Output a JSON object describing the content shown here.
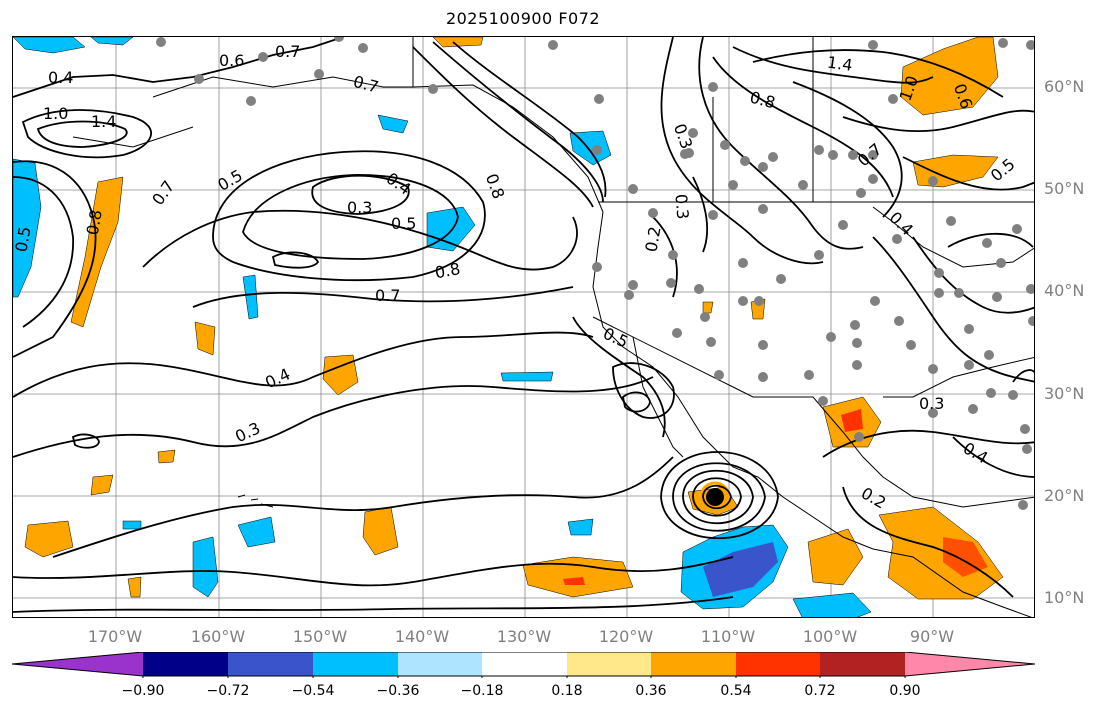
{
  "title": "2025100900 F072",
  "lat_labels": [
    "60°N",
    "50°N",
    "40°N",
    "30°N",
    "20°N",
    "10°N"
  ],
  "lon_labels": [
    "170°W",
    "160°W",
    "150°W",
    "140°W",
    "130°W",
    "120°W",
    "110°W",
    "100°W",
    "90°W"
  ],
  "contour_labels": [
    "0.7",
    "0.6",
    "0.4",
    "1.0",
    "1.4",
    "0.7",
    "0.5",
    "0.4",
    "0.3",
    "0.5",
    "0.8",
    "0.7",
    "0.4",
    "0.3",
    "0.5",
    "1.4",
    "0.8",
    "1.0",
    "0.7",
    "0.5",
    "0.4",
    "0.3",
    "0.2",
    "0.6",
    "0.8",
    "0.5",
    "0.4",
    "0.2",
    "0.3",
    "0.8",
    "0.7",
    "0.3"
  ],
  "colorbar": {
    "tick_labels": [
      "−0.90",
      "−0.72",
      "−0.54",
      "−0.36",
      "−0.18",
      "0.18",
      "0.36",
      "0.54",
      "0.72",
      "0.90"
    ],
    "colors": [
      "#9933cc",
      "#000088",
      "#3a55cc",
      "#00bfff",
      "#aee4ff",
      "#ffffff",
      "#ffe88a",
      "#ffa500",
      "#ff3300",
      "#b22222",
      "#ff88aa"
    ]
  },
  "map_colors": {
    "ocean": "#ffffff",
    "contour": "#000000",
    "positive": "#ffa500",
    "strong_positive": "#ff3300",
    "negative": "#00bfff",
    "strong_negative": "#3a55cc",
    "station_dot": "#808080"
  }
}
